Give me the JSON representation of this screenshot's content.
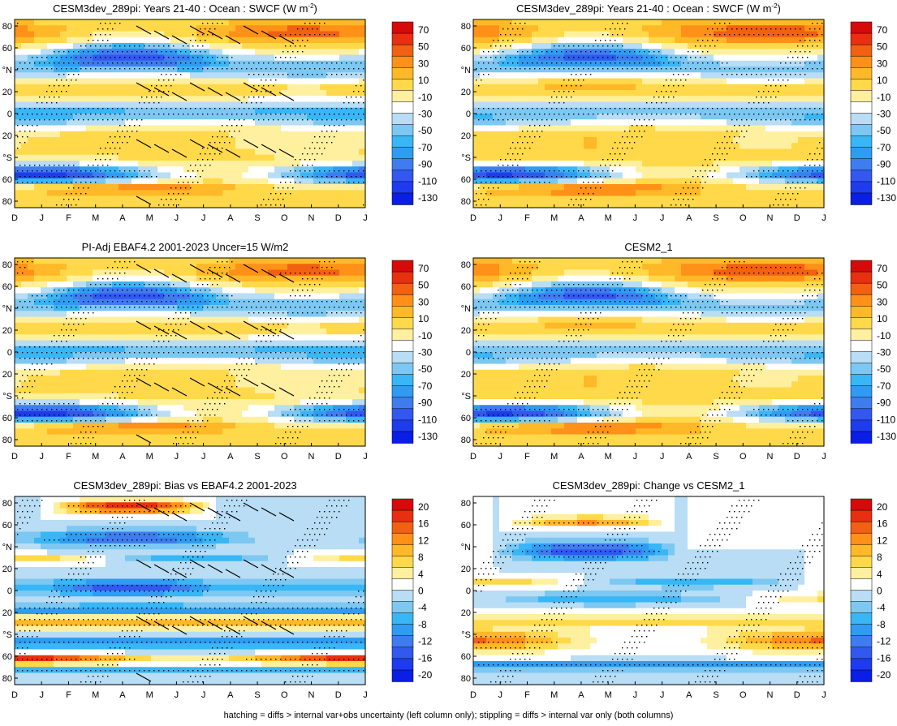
{
  "caption": "hatching = diffs > internal var+obs uncertainty (left column only); stippling = diffs > internal var only (both columns)",
  "months": [
    "D",
    "J",
    "F",
    "M",
    "A",
    "M",
    "J",
    "J",
    "A",
    "S",
    "O",
    "N",
    "D",
    "J"
  ],
  "lat_labels": [
    "80",
    "60",
    "°N",
    "20",
    "0",
    "20",
    "°S",
    "60",
    "80"
  ],
  "colormaps": {
    "field": [
      "#0a1ee6",
      "#1e3ced",
      "#3358f0",
      "#3f7cf0",
      "#2f9cf2",
      "#38b6f5",
      "#7cc8f2",
      "#b8ddf5",
      "#ffffff",
      "#fff0a0",
      "#ffd94a",
      "#ffb828",
      "#ff9018",
      "#f26012",
      "#e83010",
      "#d60a0a"
    ],
    "diff": [
      "#0a1ee6",
      "#1e3ced",
      "#3358f0",
      "#3f7cf0",
      "#2f9cf2",
      "#38b6f5",
      "#7cc8f2",
      "#b8ddf5",
      "#ffffff",
      "#fff0a0",
      "#ffd94a",
      "#ffb828",
      "#ff9018",
      "#f26012",
      "#e83010",
      "#d60a0a"
    ]
  },
  "chart_data": [
    {
      "type": "heatmap",
      "title": "CESM3dev_289pi: Years 21-40 : Ocean : SWCF (W m",
      "title_sup": "-2",
      "title_suffix": ")",
      "colorbar_labels": [
        "70",
        "50",
        "30",
        "10",
        "-10",
        "-30",
        "-50",
        "-70",
        "-90",
        "-110",
        "-130"
      ],
      "colormap": "field",
      "hatched": true,
      "stippled": true
    },
    {
      "type": "heatmap",
      "title": "CESM3dev_289pi: Years 21-40 : Ocean : SWCF (W m",
      "title_sup": "-2",
      "title_suffix": ")",
      "colorbar_labels": [
        "70",
        "50",
        "30",
        "10",
        "-10",
        "-30",
        "-50",
        "-70",
        "-90",
        "-110",
        "-130"
      ],
      "colormap": "field",
      "hatched": false,
      "stippled": true
    },
    {
      "type": "heatmap",
      "title": "PI-Adj EBAF4.2 2001-2023 Uncer=15 W/m2",
      "title_sup": "",
      "title_suffix": "",
      "colorbar_labels": [
        "70",
        "50",
        "30",
        "10",
        "-10",
        "-30",
        "-50",
        "-70",
        "-90",
        "-110",
        "-130"
      ],
      "colormap": "field",
      "hatched": true,
      "stippled": true
    },
    {
      "type": "heatmap",
      "title": "CESM2_1",
      "title_sup": "",
      "title_suffix": "",
      "colorbar_labels": [
        "70",
        "50",
        "30",
        "10",
        "-10",
        "-30",
        "-50",
        "-70",
        "-90",
        "-110",
        "-130"
      ],
      "colormap": "field",
      "hatched": false,
      "stippled": true
    },
    {
      "type": "heatmap",
      "title": "CESM3dev_289pi: Bias vs EBAF4.2 2001-2023",
      "title_sup": "",
      "title_suffix": "",
      "colorbar_labels": [
        "20",
        "16",
        "12",
        "8",
        "4",
        "0",
        "-4",
        "-8",
        "-12",
        "-16",
        "-20"
      ],
      "colormap": "diff",
      "hatched": true,
      "stippled": true
    },
    {
      "type": "heatmap",
      "title": "CESM3dev_289pi: Change vs CESM2_1",
      "title_sup": "",
      "title_suffix": "",
      "colorbar_labels": [
        "20",
        "16",
        "12",
        "8",
        "4",
        "0",
        "-4",
        "-8",
        "-12",
        "-16",
        "-20"
      ],
      "colormap": "diff",
      "hatched": false,
      "stippled": true
    }
  ]
}
